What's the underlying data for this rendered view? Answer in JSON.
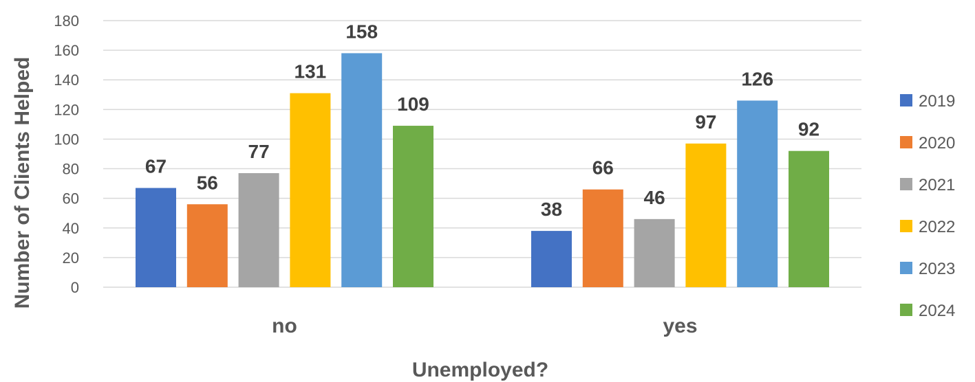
{
  "chart_data": {
    "type": "bar",
    "title": "",
    "xlabel": "Unemployed?",
    "ylabel": "Number of Clients Helped",
    "categories": [
      "no",
      "yes"
    ],
    "ylim": [
      0,
      180
    ],
    "yticks": [
      0,
      20,
      40,
      60,
      80,
      100,
      120,
      140,
      160,
      180
    ],
    "grid": true,
    "legend_position": "right",
    "series": [
      {
        "name": "2019",
        "color": "#4472c4",
        "values": [
          67,
          38
        ]
      },
      {
        "name": "2020",
        "color": "#ed7d31",
        "values": [
          56,
          66
        ]
      },
      {
        "name": "2021",
        "color": "#a5a5a5",
        "values": [
          77,
          46
        ]
      },
      {
        "name": "2022",
        "color": "#ffc000",
        "values": [
          131,
          97
        ]
      },
      {
        "name": "2023",
        "color": "#5b9bd5",
        "values": [
          158,
          126
        ]
      },
      {
        "name": "2024",
        "color": "#70ad47",
        "values": [
          109,
          92
        ]
      }
    ]
  }
}
